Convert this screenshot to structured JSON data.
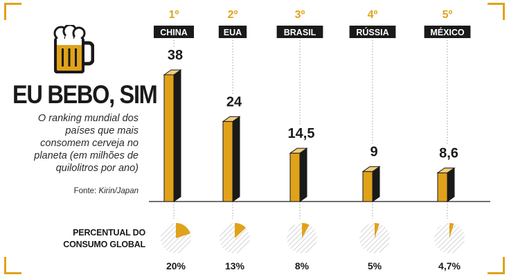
{
  "header": {
    "title": "EU BEBO, SIM",
    "subtitle": "O ranking mundial dos países que mais consomem cerveja no planeta (em milhões de quilolitros por ano)",
    "source_prefix": "Fonte: ",
    "source_name": "Kirin/Japan"
  },
  "pie_section_label": "PERCENTUAL DO CONSUMO GLOBAL",
  "colors": {
    "gold": "#e0a21a",
    "gold_top": "#f1ce7e",
    "dark": "#1a1a1a",
    "label_bg": "#1a1a1a",
    "pie_hatch": "#c8c8c8"
  },
  "icons": [
    "beer-mug-icon"
  ],
  "chart_data": {
    "type": "bar",
    "categories": [
      "CHINA",
      "EUA",
      "BRASIL",
      "RÚSSIA",
      "MÉXICO"
    ],
    "ranks": [
      "1º",
      "2º",
      "3º",
      "4º",
      "5º"
    ],
    "values": [
      38,
      24,
      14.5,
      9,
      8.6
    ],
    "value_labels": [
      "38",
      "24",
      "14,5",
      "9",
      "8,6"
    ],
    "ylabel": "milhões de quilolitros por ano",
    "share_percent": [
      20,
      13,
      8,
      5,
      4.7
    ],
    "share_labels": [
      "20%",
      "13%",
      "8%",
      "5%",
      "4,7%"
    ],
    "grid": false,
    "legend": "none"
  }
}
